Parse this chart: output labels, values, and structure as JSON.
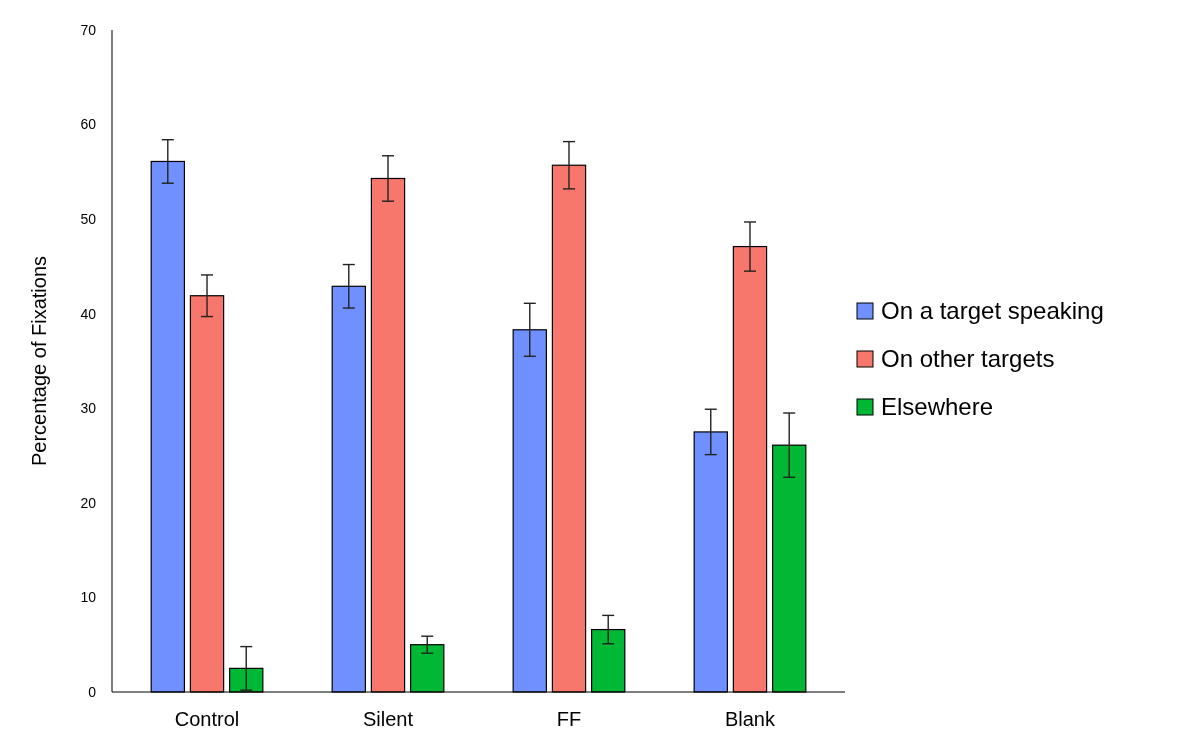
{
  "chart_data": {
    "type": "bar",
    "ylabel": "Percentage of Fixations",
    "categories": [
      "Control",
      "Silent",
      "FF",
      "Blank"
    ],
    "series": [
      {
        "name": "On a target speaking",
        "color": "#7090ff",
        "values": [
          56.1,
          42.9,
          38.3,
          27.5
        ],
        "errors": [
          2.3,
          2.3,
          2.8,
          2.4
        ]
      },
      {
        "name": "On other targets",
        "color": "#f8776d",
        "values": [
          41.9,
          54.3,
          55.7,
          47.1
        ],
        "errors": [
          2.2,
          2.4,
          2.5,
          2.6
        ]
      },
      {
        "name": "Elsewhere",
        "color": "#00b833",
        "values": [
          2.5,
          5.0,
          6.6,
          26.1
        ],
        "errors": [
          2.3,
          0.9,
          1.5,
          3.4
        ]
      }
    ],
    "ylim": [
      0,
      70
    ],
    "yticks": [
      0,
      10,
      20,
      30,
      40,
      50,
      60,
      70
    ],
    "legend": "right",
    "grid": false
  }
}
